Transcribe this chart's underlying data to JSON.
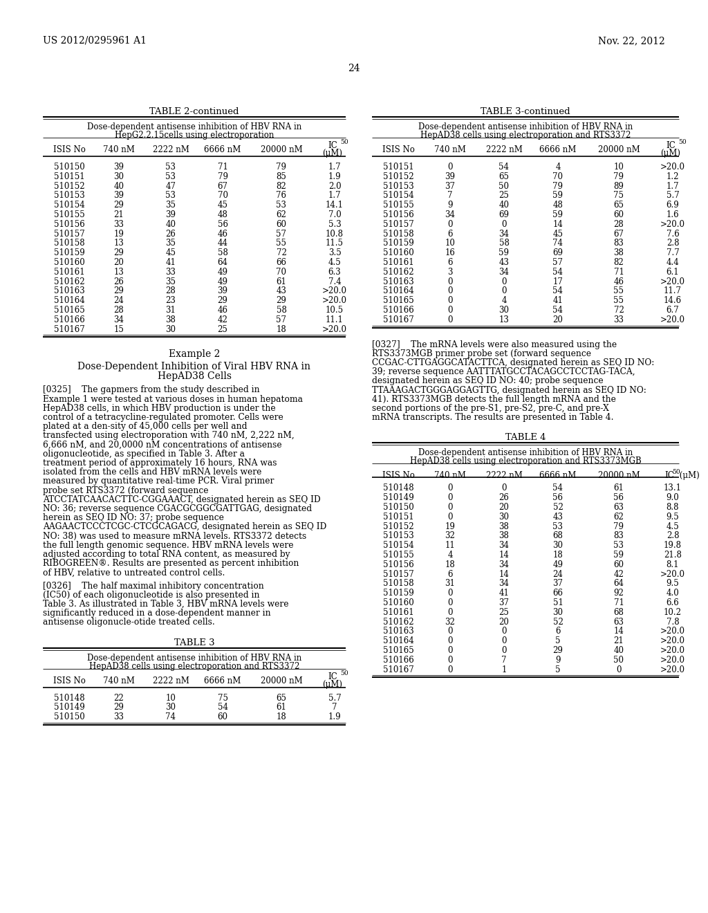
{
  "header_left": "US 2012/0295961 A1",
  "header_right": "Nov. 22, 2012",
  "page_number": "24",
  "bg_color": "#ffffff",
  "text_color": "#000000",
  "table2_title": "TABLE 2-continued",
  "table2_subtitle1": "Dose-dependent antisense inhibition of HBV RNA in",
  "table2_subtitle2": "HepG2.2.15cells using electroporation",
  "table2_data": [
    [
      "510150",
      "39",
      "53",
      "71",
      "79",
      "1.7"
    ],
    [
      "510151",
      "30",
      "53",
      "79",
      "85",
      "1.9"
    ],
    [
      "510152",
      "40",
      "47",
      "67",
      "82",
      "2.0"
    ],
    [
      "510153",
      "39",
      "53",
      "70",
      "76",
      "1.7"
    ],
    [
      "510154",
      "29",
      "35",
      "45",
      "53",
      "14.1"
    ],
    [
      "510155",
      "21",
      "39",
      "48",
      "62",
      "7.0"
    ],
    [
      "510156",
      "33",
      "40",
      "56",
      "60",
      "5.3"
    ],
    [
      "510157",
      "19",
      "26",
      "46",
      "57",
      "10.8"
    ],
    [
      "510158",
      "13",
      "35",
      "44",
      "55",
      "11.5"
    ],
    [
      "510159",
      "29",
      "45",
      "58",
      "72",
      "3.5"
    ],
    [
      "510160",
      "20",
      "41",
      "64",
      "66",
      "4.5"
    ],
    [
      "510161",
      "13",
      "33",
      "49",
      "70",
      "6.3"
    ],
    [
      "510162",
      "26",
      "35",
      "49",
      "61",
      "7.4"
    ],
    [
      "510163",
      "29",
      "28",
      "39",
      "43",
      ">20.0"
    ],
    [
      "510164",
      "24",
      "23",
      "29",
      "29",
      ">20.0"
    ],
    [
      "510165",
      "28",
      "31",
      "46",
      "58",
      "10.5"
    ],
    [
      "510166",
      "34",
      "38",
      "42",
      "57",
      "11.1"
    ],
    [
      "510167",
      "15",
      "30",
      "25",
      "18",
      ">20.0"
    ]
  ],
  "example2_title": "Example 2",
  "example2_subtitle1": "Dose-Dependent Inhibition of Viral HBV RNA in",
  "example2_subtitle2": "HepAD38 Cells",
  "para0325_tag": "[0325]",
  "para0325_body": "The gapmers from the study described in Example 1 were tested at various doses in human hepatoma HepAD38 cells, in which HBV production is under the control of a tetracycline-regulated promoter. Cells were plated at a den-sity of 45,000 cells per well and transfected using electroporation with 740 nM, 2,222 nM, 6,666 nM, and 20,0000 nM concentrations of antisense oligonucleotide, as specified in Table 3. After a treatment period of approximately 16 hours, RNA was isolated from the cells and HBV mRNA levels were measured by quantitative real-time PCR. Viral primer probe set RTS3372 (forward sequence ATCCTATCAACACTTC-CGGAAACT, designated herein as SEQ ID NO: 36; reverse sequence CGACGCGGCGATTGAG, designated herein as SEQ ID NO: 37; probe sequence AAGAACTCCCTCGC-CTCGCAGACG, designated herein as SEQ ID NO: 38) was used to measure mRNA levels. RTS3372 detects the full length genomic sequence. HBV mRNA levels were adjusted according to total RNA content, as measured by RIBOGREEN®. Results are presented as percent inhibition of HBV, relative to untreated control cells.",
  "para0326_tag": "[0326]",
  "para0326_body": "The half maximal inhibitory concentration (IC50) of each oligonucleotide is also presented in Table 3. As illustrated in Table 3, HBV mRNA levels were significantly reduced in a dose-dependent manner in antisense oligonucle-otide treated cells.",
  "table3_title": "TABLE 3",
  "table3_subtitle1": "Dose-dependent antisense inhibition of HBV RNA in",
  "table3_subtitle2": "HepAD38 cells using electroporation and RTS3372",
  "table3_data_first": [
    [
      "510148",
      "22",
      "10",
      "75",
      "65",
      "5.7"
    ],
    [
      "510149",
      "29",
      "30",
      "54",
      "61",
      "7"
    ],
    [
      "510150",
      "33",
      "74",
      "60",
      "18",
      "1.9"
    ]
  ],
  "table3cont_title": "TABLE 3-continued",
  "table3cont_subtitle1": "Dose-dependent antisense inhibition of HBV RNA in",
  "table3cont_subtitle2": "HepAD38 cells using electroporation and RTS3372",
  "table3cont_data": [
    [
      "510151",
      "0",
      "54",
      "4",
      "10",
      ">20.0"
    ],
    [
      "510152",
      "39",
      "65",
      "70",
      "79",
      "1.2"
    ],
    [
      "510153",
      "37",
      "50",
      "79",
      "89",
      "1.7"
    ],
    [
      "510154",
      "7",
      "25",
      "59",
      "75",
      "5.7"
    ],
    [
      "510155",
      "9",
      "40",
      "48",
      "65",
      "6.9"
    ],
    [
      "510156",
      "34",
      "69",
      "59",
      "60",
      "1.6"
    ],
    [
      "510157",
      "0",
      "0",
      "14",
      "28",
      ">20.0"
    ],
    [
      "510158",
      "6",
      "34",
      "45",
      "67",
      "7.6"
    ],
    [
      "510159",
      "10",
      "58",
      "74",
      "83",
      "2.8"
    ],
    [
      "510160",
      "16",
      "59",
      "69",
      "38",
      "7.7"
    ],
    [
      "510161",
      "6",
      "43",
      "57",
      "82",
      "4.4"
    ],
    [
      "510162",
      "3",
      "34",
      "54",
      "71",
      "6.1"
    ],
    [
      "510163",
      "0",
      "0",
      "17",
      "46",
      ">20.0"
    ],
    [
      "510164",
      "0",
      "0",
      "54",
      "55",
      "11.7"
    ],
    [
      "510165",
      "0",
      "4",
      "41",
      "55",
      "14.6"
    ],
    [
      "510166",
      "0",
      "30",
      "54",
      "72",
      "6.7"
    ],
    [
      "510167",
      "0",
      "13",
      "20",
      "33",
      ">20.0"
    ]
  ],
  "para0327_tag": "[0327]",
  "para0327_body": "The mRNA levels were also measured using the RTS3373MGB primer probe set (forward sequence CCGAC-CTTGAGGCATACTTCA, designated herein as SEQ ID NO: 39; reverse sequence AATTTATGCCTACAGCCTCCTAG-TACA, designated herein as SEQ ID NO: 40; probe sequence TTAAAGACTGGGAGGAGTTG, designated herein as SEQ ID NO: 41). RTS3373MGB detects the full length mRNA and the second portions of the pre-S1, pre-S2, pre-C, and pre-X mRNA transcripts. The results are presented in Table 4.",
  "table4_title": "TABLE 4",
  "table4_subtitle1": "Dose-dependent antisense inhibition of HBV RNA in",
  "table4_subtitle2": "HepAD38 cells using electroporation and RTS3373MGB",
  "table4_data": [
    [
      "510148",
      "0",
      "0",
      "54",
      "61",
      "13.1"
    ],
    [
      "510149",
      "0",
      "26",
      "56",
      "56",
      "9.0"
    ],
    [
      "510150",
      "0",
      "20",
      "52",
      "63",
      "8.8"
    ],
    [
      "510151",
      "0",
      "30",
      "43",
      "62",
      "9.5"
    ],
    [
      "510152",
      "19",
      "38",
      "53",
      "79",
      "4.5"
    ],
    [
      "510153",
      "32",
      "38",
      "68",
      "83",
      "2.8"
    ],
    [
      "510154",
      "11",
      "34",
      "30",
      "53",
      "19.8"
    ],
    [
      "510155",
      "4",
      "14",
      "18",
      "59",
      "21.8"
    ],
    [
      "510156",
      "18",
      "34",
      "49",
      "60",
      "8.1"
    ],
    [
      "510157",
      "6",
      "14",
      "24",
      "42",
      ">20.0"
    ],
    [
      "510158",
      "31",
      "34",
      "37",
      "64",
      "9.5"
    ],
    [
      "510159",
      "0",
      "41",
      "66",
      "92",
      "4.0"
    ],
    [
      "510160",
      "0",
      "37",
      "51",
      "71",
      "6.6"
    ],
    [
      "510161",
      "0",
      "25",
      "30",
      "68",
      "10.2"
    ],
    [
      "510162",
      "32",
      "20",
      "52",
      "63",
      "7.8"
    ],
    [
      "510163",
      "0",
      "0",
      "6",
      "14",
      ">20.0"
    ],
    [
      "510164",
      "0",
      "0",
      "5",
      "21",
      ">20.0"
    ],
    [
      "510165",
      "0",
      "0",
      "29",
      "40",
      ">20.0"
    ],
    [
      "510166",
      "0",
      "7",
      "9",
      "50",
      ">20.0"
    ],
    [
      "510167",
      "0",
      "1",
      "5",
      "0",
      ">20.0"
    ]
  ]
}
